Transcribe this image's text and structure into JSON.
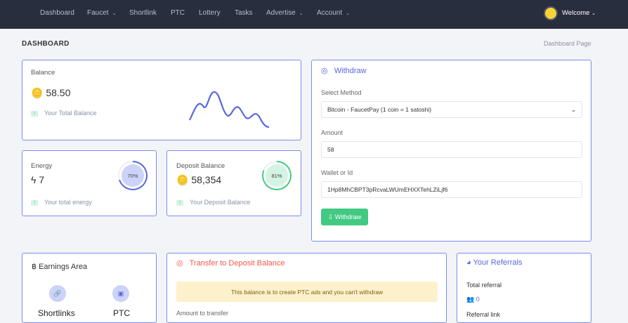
{
  "nav": {
    "items": [
      {
        "label": "Dashboard",
        "caret": false
      },
      {
        "label": "Faucet",
        "caret": true
      },
      {
        "label": "Shortlink",
        "caret": false
      },
      {
        "label": "PTC",
        "caret": false
      },
      {
        "label": "Lottery",
        "caret": false
      },
      {
        "label": "Tasks",
        "caret": false
      },
      {
        "label": "Advertise",
        "caret": true
      },
      {
        "label": "Account",
        "caret": true
      }
    ],
    "welcome": "Welcome"
  },
  "page": {
    "title": "DASHBOARD",
    "breadcrumb": "Dashboard Page"
  },
  "balance": {
    "label": "Balance",
    "value": "58.50",
    "sub": "Your Total Balance"
  },
  "energy": {
    "label": "Energy",
    "value": "7",
    "sub": "Your total energy",
    "percent": 70,
    "percent_label": "70%"
  },
  "deposit": {
    "label": "Deposit Balance",
    "value": "58,354",
    "sub": "Your Deposit Balance",
    "percent": 81,
    "percent_label": "81%"
  },
  "withdraw": {
    "title": "Withdraw",
    "method_label": "Select Method",
    "method_value": "Bitcoin - FaucetPay (1 coin = 1 satoshi)",
    "amount_label": "Amount",
    "amount_value": "58",
    "wallet_label": "Wallet or Id",
    "wallet_value": "1Hp8MhCBPT3pRcvaLWUmEHXXTehLZiLjf6",
    "button": "Withdraw"
  },
  "earnings": {
    "title": "Earnings Area",
    "items": [
      "Shortlinks",
      "PTC"
    ]
  },
  "transfer": {
    "title": "Transfer to Deposit Balance",
    "alert": "This balance is to create PTC ads and you can't withdraw",
    "amount_label": "Amount to transfer"
  },
  "referrals": {
    "title": "Your Referrals",
    "total_label": "Total referral",
    "total_value": "0",
    "link_label": "Referral link"
  },
  "colors": {
    "accent": "#5867dd",
    "success": "#42c983",
    "danger": "#f4564b",
    "navbar": "#292e3e"
  }
}
